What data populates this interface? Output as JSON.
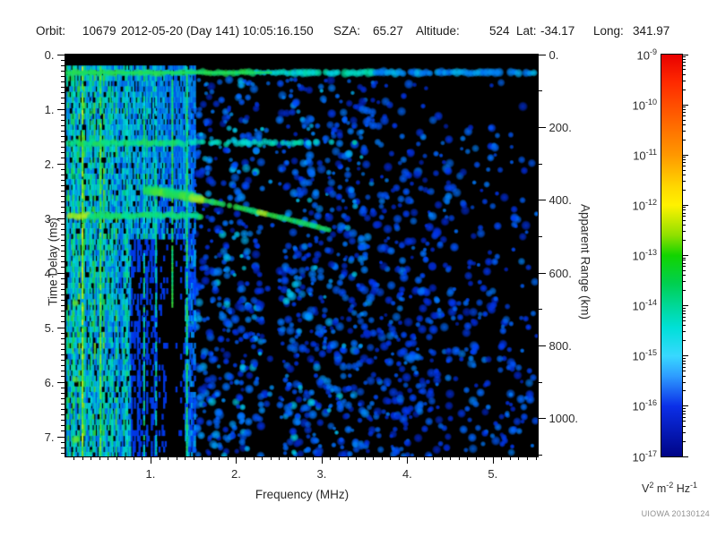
{
  "header": {
    "orbit_label": "Orbit:",
    "orbit": "10679",
    "datetime": "2012-05-20 (Day 141) 10:05:16.150",
    "sza_label": "SZA:",
    "sza": "65.27",
    "altitude_label": "Altitude:",
    "altitude": "524",
    "lat_label": "Lat:",
    "lat": "-34.17",
    "long_label": "Long:",
    "long": "341.97"
  },
  "chart_data": {
    "type": "heatmap",
    "description": "Radar sounder ionogram spectrogram: spectral density vs frequency and time delay",
    "xlabel": "Frequency (MHz)",
    "ylabel": "Time Delay (ms)",
    "y2label": "Apparent Range (km)",
    "xlim": [
      0,
      5.52
    ],
    "ylim": [
      0,
      7.36
    ],
    "x_ticks": [
      {
        "v": 1,
        "label": "1."
      },
      {
        "v": 2,
        "label": "2."
      },
      {
        "v": 3,
        "label": "3."
      },
      {
        "v": 4,
        "label": "4."
      },
      {
        "v": 5,
        "label": "5."
      }
    ],
    "x_minor_step": 0.1,
    "y_ticks": [
      {
        "v": 0,
        "label": "0."
      },
      {
        "v": 1,
        "label": "1."
      },
      {
        "v": 2,
        "label": "2."
      },
      {
        "v": 3,
        "label": "3."
      },
      {
        "v": 4,
        "label": "4."
      },
      {
        "v": 5,
        "label": "5."
      },
      {
        "v": 6,
        "label": "6."
      },
      {
        "v": 7,
        "label": "7."
      }
    ],
    "y_minor_step": 0.1,
    "y2_ticks": [
      {
        "v": 0,
        "label": "0."
      },
      {
        "v": 200,
        "label": "200."
      },
      {
        "v": 400,
        "label": "400."
      },
      {
        "v": 600,
        "label": "600."
      },
      {
        "v": 800,
        "label": "800."
      },
      {
        "v": 1000,
        "label": "1000."
      }
    ],
    "y2_minor_step": 100,
    "km_per_ms": 150,
    "colorbar": {
      "scale": "log",
      "exponents": [
        -9,
        -10,
        -11,
        -12,
        -13,
        -14,
        -15,
        -16,
        -17
      ],
      "unit_parts": [
        [
          "V",
          "2"
        ],
        [
          "m",
          "-2"
        ],
        [
          "Hz",
          "-1"
        ]
      ],
      "gradient": [
        {
          "p": 0.0,
          "c": "#e80000"
        },
        {
          "p": 0.07,
          "c": "#ff2a00"
        },
        {
          "p": 0.125,
          "c": "#ff4d00"
        },
        {
          "p": 0.25,
          "c": "#ff9800"
        },
        {
          "p": 0.33,
          "c": "#ffd800"
        },
        {
          "p": 0.375,
          "c": "#fff200"
        },
        {
          "p": 0.45,
          "c": "#8fe000"
        },
        {
          "p": 0.5,
          "c": "#12d400"
        },
        {
          "p": 0.57,
          "c": "#00d050"
        },
        {
          "p": 0.625,
          "c": "#00d898"
        },
        {
          "p": 0.68,
          "c": "#00e0d8"
        },
        {
          "p": 0.75,
          "c": "#38d8ff"
        },
        {
          "p": 0.8,
          "c": "#2e9cff"
        },
        {
          "p": 0.875,
          "c": "#0b2fe8"
        },
        {
          "p": 1.0,
          "c": "#000486"
        }
      ]
    },
    "features": {
      "surface_echo_band": {
        "t": 0.33,
        "f0": 0.03,
        "f1": 5.5
      },
      "harmonic_band_1": {
        "t": 1.62,
        "f0": 0.05,
        "f1_solid": 1.38,
        "f1_fade": 3.6
      },
      "harmonic_band_2": {
        "t": 2.95,
        "f0": 0.05,
        "f1": 1.6,
        "bright_below_f": 0.28
      },
      "ionospheric_trace": {
        "f0": 0.95,
        "t0": 2.5,
        "f1": 3.1,
        "t1": 3.22
      },
      "bright_vertical_lines": [
        {
          "f": 0.2,
          "v": 0.88,
          "t1": 7.36
        },
        {
          "f": 0.41,
          "v": 0.8,
          "t1": 7.36
        },
        {
          "f": 1.25,
          "v": 0.72,
          "t1": 4.6
        },
        {
          "f": 1.42,
          "v": 0.7,
          "t1": 7.36
        }
      ],
      "medium_vertical_lines": [
        0.1,
        0.3,
        0.55,
        0.72,
        0.92,
        1.06
      ],
      "dense_streak_fmax": 1.52,
      "streak_gap": {
        "f0": 0.76,
        "f1": 1.4,
        "t_from": 3.4
      },
      "dark_columns": [
        [
          2.3,
          2.5
        ],
        [
          4.52,
          4.68
        ]
      ],
      "speckle_regions": [
        {
          "f0": 1.4,
          "f1": 3.6,
          "density": 0.62
        },
        {
          "f0": 3.6,
          "f1": 4.5,
          "density": 0.42
        },
        {
          "f0": 4.5,
          "f1": 5.52,
          "density": 0.26
        }
      ]
    }
  },
  "credit": "UIOWA 20130124"
}
